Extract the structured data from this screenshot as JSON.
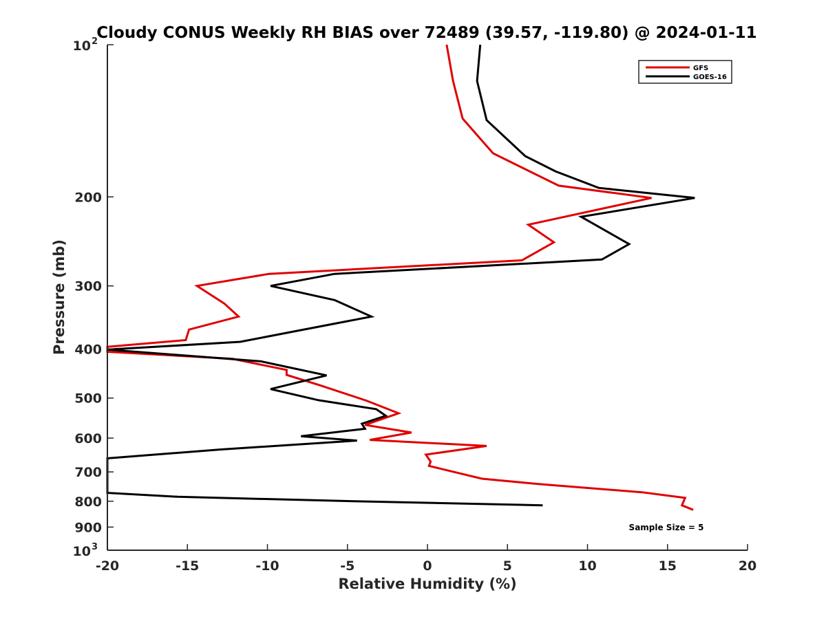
{
  "chart_data": {
    "type": "line",
    "title": "Cloudy CONUS Weekly RH BIAS over 72489 (39.57, -119.80) @ 2024-01-11",
    "xlabel": "Relative Humidity (%)",
    "ylabel": "Pressure (mb)",
    "xlim": [
      -20,
      20
    ],
    "ylim": [
      100,
      1000
    ],
    "y_scale": "log",
    "y_reversed": true,
    "grid": false,
    "legend_position": "top-right",
    "x_ticks": [
      -20,
      -15,
      -10,
      -5,
      0,
      5,
      10,
      15,
      20
    ],
    "y_ticks": [
      {
        "value": 100,
        "base": "10",
        "exp": "2"
      },
      {
        "value": 200,
        "label": "200"
      },
      {
        "value": 300,
        "label": "300"
      },
      {
        "value": 400,
        "label": "400"
      },
      {
        "value": 500,
        "label": "500"
      },
      {
        "value": 600,
        "label": "600"
      },
      {
        "value": 700,
        "label": "700"
      },
      {
        "value": 800,
        "label": "800"
      },
      {
        "value": 900,
        "label": "900"
      },
      {
        "value": 1000,
        "base": "10",
        "exp": "3"
      }
    ],
    "annotation": "Sample Size = 5",
    "series": [
      {
        "name": "GFS",
        "color": "#e00000",
        "points": [
          [
            1.2,
            100
          ],
          [
            1.6,
            118
          ],
          [
            2.2,
            140
          ],
          [
            4.1,
            164
          ],
          [
            8.2,
            190
          ],
          [
            14.0,
            201
          ],
          [
            6.3,
            227
          ],
          [
            7.9,
            246
          ],
          [
            5.9,
            267
          ],
          [
            -9.9,
            284
          ],
          [
            -14.4,
            300
          ],
          [
            -12.7,
            325
          ],
          [
            -11.8,
            345
          ],
          [
            -14.9,
            366
          ],
          [
            -15.1,
            384
          ],
          [
            -20,
            396
          ],
          [
            -20,
            405
          ],
          [
            -12.2,
            418
          ],
          [
            -8.8,
            440
          ],
          [
            -8.8,
            450
          ],
          [
            -6.7,
            472
          ],
          [
            -3.8,
            506
          ],
          [
            -1.8,
            536
          ],
          [
            -3.9,
            565
          ],
          [
            -1.0,
            585
          ],
          [
            -3.6,
            605
          ],
          [
            3.7,
            622
          ],
          [
            -0.1,
            647
          ],
          [
            0.2,
            668
          ],
          [
            0.1,
            681
          ],
          [
            3.4,
            722
          ],
          [
            7.0,
            740
          ],
          [
            13.4,
            768
          ],
          [
            16.1,
            788
          ],
          [
            15.9,
            815
          ],
          [
            16.6,
            832
          ]
        ]
      },
      {
        "name": "GOES-16",
        "color": "#000000",
        "points": [
          [
            3.3,
            100
          ],
          [
            3.1,
            118
          ],
          [
            3.7,
            141
          ],
          [
            6.1,
            166
          ],
          [
            8.0,
            178
          ],
          [
            10.7,
            192
          ],
          [
            16.7,
            201
          ],
          [
            9.6,
            219
          ],
          [
            12.6,
            248
          ],
          [
            10.9,
            266
          ],
          [
            -5.8,
            284
          ],
          [
            -9.8,
            300
          ],
          [
            -5.8,
            320
          ],
          [
            -3.5,
            345
          ],
          [
            -8.5,
            370
          ],
          [
            -11.7,
            387
          ],
          [
            -20,
            401
          ],
          [
            -10.4,
            423
          ],
          [
            -6.3,
            451
          ],
          [
            -9.8,
            480
          ],
          [
            -6.8,
            505
          ],
          [
            -3.2,
            526
          ],
          [
            -2.6,
            542
          ],
          [
            -4.1,
            562
          ],
          [
            -3.9,
            575
          ],
          [
            -7.9,
            595
          ],
          [
            -4.4,
            607
          ],
          [
            -12.9,
            632
          ],
          [
            -20,
            658
          ],
          [
            -20,
            770
          ],
          [
            -15.6,
            784
          ],
          [
            -4.6,
            800
          ],
          [
            7.2,
            815
          ]
        ]
      }
    ]
  }
}
